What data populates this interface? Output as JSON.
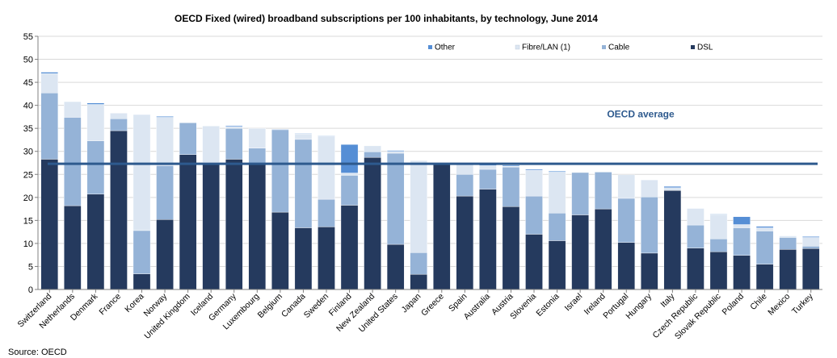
{
  "chart_data": {
    "type": "bar",
    "stacked": true,
    "title": "OECD  Fixed  (wired) broadband  subscriptions  per 100 inhabitants,  by technology,  June 2014",
    "xlabel": "",
    "ylabel": "",
    "ylim": [
      0,
      55
    ],
    "yticks": [
      0,
      5,
      10,
      15,
      20,
      25,
      30,
      35,
      40,
      45,
      50,
      55
    ],
    "grid": true,
    "legend_position": "top-right",
    "categories": [
      "Switzerland",
      "Netherlands",
      "Denmark",
      "France",
      "Korea",
      "Norway",
      "United Kingdom",
      "Iceland",
      "Germany",
      "Luxembourg",
      "Belgium",
      "Canada",
      "Sweden",
      "Finland",
      "New Zealand",
      "United States",
      "Japan",
      "Greece",
      "Spain",
      "Australia",
      "Austria",
      "Slovenia",
      "Estonia",
      "Israel",
      "Ireland",
      "Portugal",
      "Hungary",
      "Italy",
      "Czech Republic",
      "Slovak Republic",
      "Poland",
      "Chile",
      "Mexico",
      "Turkey"
    ],
    "series": [
      {
        "name": "DSL",
        "color": "#253A5E",
        "values": [
          28.3,
          18.2,
          20.7,
          34.5,
          3.4,
          15.2,
          29.3,
          27.3,
          28.3,
          27.3,
          16.8,
          13.4,
          13.6,
          18.3,
          28.7,
          9.8,
          3.3,
          27.3,
          20.3,
          21.8,
          18.0,
          12.0,
          10.6,
          16.2,
          17.5,
          10.2,
          7.9,
          21.5,
          9.0,
          8.2,
          7.4,
          5.5,
          8.7,
          8.9
        ]
      },
      {
        "name": "Cable",
        "color": "#95B3D7",
        "values": [
          14.4,
          19.2,
          11.6,
          2.6,
          9.4,
          11.7,
          6.9,
          0.3,
          6.7,
          3.4,
          17.9,
          19.2,
          6.0,
          6.5,
          1.2,
          19.8,
          4.7,
          0.0,
          4.7,
          4.3,
          8.6,
          8.3,
          6.0,
          9.2,
          8.0,
          9.6,
          12.2,
          0.0,
          5.0,
          2.8,
          6.0,
          7.2,
          2.6,
          0.5
        ]
      },
      {
        "name": "Fibre/LAN (1)",
        "color": "#DCE6F2",
        "values": [
          4.2,
          3.4,
          7.9,
          1.2,
          25.2,
          10.5,
          0.0,
          7.9,
          0.4,
          4.3,
          0.0,
          1.2,
          13.7,
          0.5,
          1.3,
          0.4,
          20.0,
          0.0,
          2.2,
          0.8,
          0.2,
          5.6,
          8.9,
          0.0,
          0.0,
          5.1,
          3.7,
          0.6,
          3.6,
          5.3,
          0.7,
          0.7,
          0.2,
          1.9
        ]
      },
      {
        "name": "Other",
        "color": "#558ED5",
        "values": [
          0.3,
          0.0,
          0.3,
          0.0,
          0.0,
          0.2,
          0.0,
          0.0,
          0.2,
          0.0,
          0.1,
          0.1,
          0.1,
          6.2,
          0.0,
          0.2,
          0.0,
          0.0,
          0.0,
          0.4,
          0.2,
          0.2,
          0.2,
          0.0,
          0.0,
          0.0,
          0.0,
          0.3,
          0.0,
          0.1,
          1.7,
          0.3,
          0.1,
          0.2
        ]
      }
    ],
    "reference_line": {
      "label": "OECD average",
      "value": 27.3,
      "color": "#2E5A8E"
    },
    "source": "Source: OECD"
  }
}
